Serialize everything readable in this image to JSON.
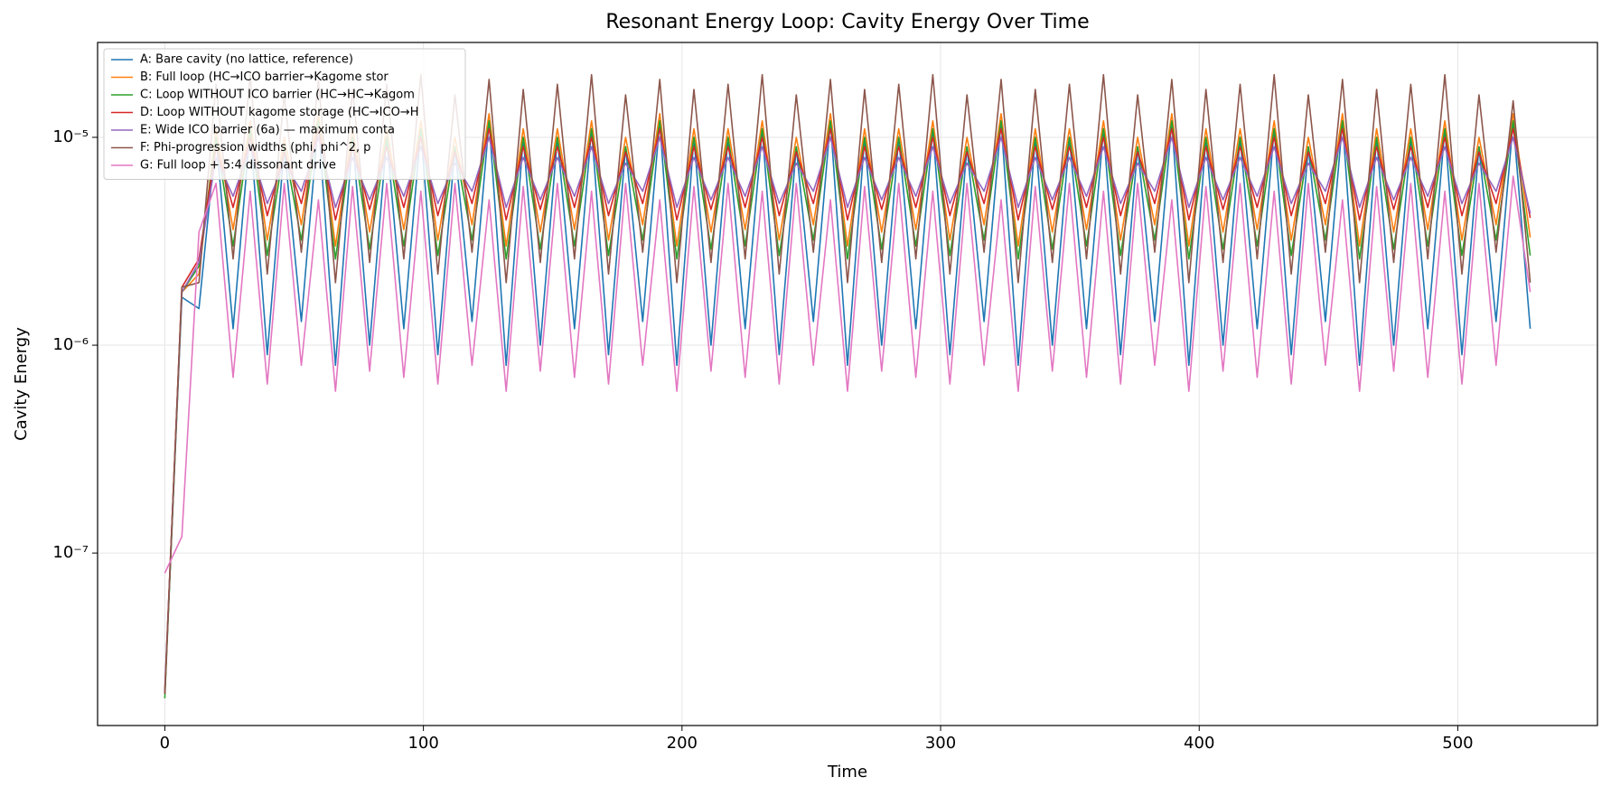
{
  "chart_data": {
    "type": "line",
    "title": "Resonant Energy Loop: Cavity Energy Over Time",
    "x_label": "Time",
    "y_label": "Cavity Energy",
    "yscale": "log",
    "grid": true,
    "legend": "upper left",
    "xlim": [
      -26,
      554
    ],
    "xticks": [
      0,
      100,
      200,
      300,
      400,
      500
    ],
    "ylim": [
      1.48e-08,
      2.86e-05
    ],
    "yticks": [
      {
        "value": 1e-07,
        "label": "10⁻⁷"
      },
      {
        "value": 1e-06,
        "label": "10⁻⁶"
      },
      {
        "value": 1e-05,
        "label": "10⁻⁵"
      }
    ],
    "x": [
      0,
      6.6,
      13.2,
      19.8,
      26.4,
      33,
      39.6,
      46.2,
      52.8,
      59.4,
      66,
      72.6,
      79.2,
      85.8,
      92.4,
      99,
      105.6,
      112.2,
      118.8,
      125.4,
      132,
      138.6,
      145.2,
      151.8,
      158.4,
      165,
      171.6,
      178.2,
      184.8,
      191.4,
      198,
      204.6,
      211.2,
      217.8,
      224.4,
      231,
      237.6,
      244.2,
      250.8,
      257.4,
      264,
      270.6,
      277.2,
      283.8,
      290.4,
      297,
      303.6,
      310.2,
      316.8,
      323.4,
      330,
      336.6,
      343.2,
      349.8,
      356.4,
      363,
      369.6,
      376.2,
      382.8,
      389.4,
      396,
      402.6,
      409.2,
      415.8,
      422.4,
      429,
      435.6,
      442.2,
      448.8,
      455.4,
      462,
      468.6,
      475.2,
      481.8,
      488.4,
      495,
      501.6,
      508.2,
      514.8,
      521.4,
      528
    ],
    "series": [
      {
        "name": "A: Bare cavity (no lattice, reference)",
        "color": "#1f77b4",
        "values": [
          2.1e-08,
          1.7e-06,
          1.5e-06,
          1e-05,
          1.2e-06,
          1.1e-05,
          9e-07,
          9e-06,
          1.3e-06,
          1.2e-05,
          8e-07,
          1e-05,
          1e-06,
          1e-05,
          1.2e-06,
          1.1e-05,
          9e-07,
          9e-06,
          1.3e-06,
          1.2e-05,
          8e-07,
          1e-05,
          1e-06,
          1e-05,
          1.2e-06,
          1.1e-05,
          9e-07,
          9e-06,
          1.3e-06,
          1.2e-05,
          8e-07,
          1e-05,
          1e-06,
          1e-05,
          1.2e-06,
          1.1e-05,
          9e-07,
          9e-06,
          1.3e-06,
          1.2e-05,
          8e-07,
          1e-05,
          1e-06,
          1e-05,
          1.2e-06,
          1.1e-05,
          9e-07,
          9e-06,
          1.3e-06,
          1.2e-05,
          8e-07,
          1e-05,
          1e-06,
          1e-05,
          1.2e-06,
          1.1e-05,
          9e-07,
          9e-06,
          1.3e-06,
          1.2e-05,
          8e-07,
          1e-05,
          1e-06,
          1e-05,
          1.2e-06,
          1.1e-05,
          9e-07,
          9e-06,
          1.3e-06,
          1.2e-05,
          8e-07,
          1e-05,
          1e-06,
          1e-05,
          1.2e-06,
          1.1e-05,
          9e-07,
          9e-06,
          1.3e-06,
          1.2e-05,
          1.2e-06
        ]
      },
      {
        "name": "B: Full loop (HC→ICO barrier→Kagome stor",
        "color": "#ff7f0e",
        "values": [
          2.2e-08,
          1.8e-06,
          2.2e-06,
          1.1e-05,
          3.6e-06,
          1.2e-05,
          3.2e-06,
          1e-05,
          3.8e-06,
          1.3e-05,
          3e-06,
          1.1e-05,
          3.5e-06,
          1.1e-05,
          3.6e-06,
          1.2e-05,
          3.2e-06,
          1e-05,
          3.8e-06,
          1.3e-05,
          3e-06,
          1.1e-05,
          3.5e-06,
          1.1e-05,
          3.6e-06,
          1.2e-05,
          3.2e-06,
          1e-05,
          3.8e-06,
          1.3e-05,
          3e-06,
          1.1e-05,
          3.5e-06,
          1.1e-05,
          3.6e-06,
          1.2e-05,
          3.2e-06,
          1e-05,
          3.8e-06,
          1.3e-05,
          3e-06,
          1.1e-05,
          3.5e-06,
          1.1e-05,
          3.6e-06,
          1.2e-05,
          3.2e-06,
          1e-05,
          3.8e-06,
          1.3e-05,
          3e-06,
          1.1e-05,
          3.5e-06,
          1.1e-05,
          3.6e-06,
          1.2e-05,
          3.2e-06,
          1e-05,
          3.8e-06,
          1.3e-05,
          3e-06,
          1.1e-05,
          3.5e-06,
          1.1e-05,
          3.6e-06,
          1.2e-05,
          3.2e-06,
          1e-05,
          3.8e-06,
          1.3e-05,
          3e-06,
          1.1e-05,
          3.5e-06,
          1.1e-05,
          3.6e-06,
          1.2e-05,
          3.2e-06,
          1e-05,
          3.8e-06,
          1.3e-05,
          3.3e-06
        ]
      },
      {
        "name": "C: Loop WITHOUT ICO barrier (HC→HC→Kagom",
        "color": "#2ca02c",
        "values": [
          2e-08,
          1.8e-06,
          2.4e-06,
          1e-05,
          3e-06,
          1.1e-05,
          2.7e-06,
          9e-06,
          3.2e-06,
          1.2e-05,
          2.6e-06,
          1e-05,
          2.9e-06,
          1e-05,
          3e-06,
          1.1e-05,
          2.7e-06,
          9e-06,
          3.2e-06,
          1.2e-05,
          2.6e-06,
          1e-05,
          2.9e-06,
          1e-05,
          3e-06,
          1.1e-05,
          2.7e-06,
          9e-06,
          3.2e-06,
          1.2e-05,
          2.6e-06,
          1e-05,
          2.9e-06,
          1e-05,
          3e-06,
          1.1e-05,
          2.7e-06,
          9e-06,
          3.2e-06,
          1.2e-05,
          2.6e-06,
          1e-05,
          2.9e-06,
          1e-05,
          3e-06,
          1.1e-05,
          2.7e-06,
          9e-06,
          3.2e-06,
          1.2e-05,
          2.6e-06,
          1e-05,
          2.9e-06,
          1e-05,
          3e-06,
          1.1e-05,
          2.7e-06,
          9e-06,
          3.2e-06,
          1.2e-05,
          2.6e-06,
          1e-05,
          2.9e-06,
          1e-05,
          3e-06,
          1.1e-05,
          2.7e-06,
          9e-06,
          3.2e-06,
          1.2e-05,
          2.6e-06,
          1e-05,
          2.9e-06,
          1e-05,
          3e-06,
          1.1e-05,
          2.7e-06,
          9e-06,
          3.2e-06,
          1.2e-05,
          2.7e-06
        ]
      },
      {
        "name": "D: Loop WITHOUT kagome storage (HC→ICO→H",
        "color": "#d62728",
        "values": [
          2.1e-08,
          1.9e-06,
          2.6e-06,
          9e-06,
          4.6e-06,
          1e-05,
          4.2e-06,
          8.5e-06,
          4.8e-06,
          1.1e-05,
          4e-06,
          9e-06,
          4.5e-06,
          9e-06,
          4.6e-06,
          1e-05,
          4.2e-06,
          8.5e-06,
          4.8e-06,
          1.1e-05,
          4e-06,
          9e-06,
          4.5e-06,
          9e-06,
          4.6e-06,
          1e-05,
          4.2e-06,
          8.5e-06,
          4.8e-06,
          1.1e-05,
          4e-06,
          9e-06,
          4.5e-06,
          9e-06,
          4.6e-06,
          1e-05,
          4.2e-06,
          8.5e-06,
          4.8e-06,
          1.1e-05,
          4e-06,
          9e-06,
          4.5e-06,
          9e-06,
          4.6e-06,
          1e-05,
          4.2e-06,
          8.5e-06,
          4.8e-06,
          1.1e-05,
          4e-06,
          9e-06,
          4.5e-06,
          9e-06,
          4.6e-06,
          1e-05,
          4.2e-06,
          8.5e-06,
          4.8e-06,
          1.1e-05,
          4e-06,
          9e-06,
          4.5e-06,
          9e-06,
          4.6e-06,
          1e-05,
          4.2e-06,
          8.5e-06,
          4.8e-06,
          1.1e-05,
          4e-06,
          9e-06,
          4.5e-06,
          9e-06,
          4.6e-06,
          1e-05,
          4.2e-06,
          8.5e-06,
          4.8e-06,
          1.1e-05,
          4.1e-06
        ]
      },
      {
        "name": "E: Wide ICO barrier (6a) — maximum conta",
        "color": "#9467bd",
        "values": [
          2.2e-08,
          1.8e-06,
          2.5e-06,
          8e-06,
          5.2e-06,
          9e-06,
          4.8e-06,
          7.5e-06,
          5.5e-06,
          1e-05,
          4.6e-06,
          8e-06,
          5e-06,
          8e-06,
          5.2e-06,
          9e-06,
          4.8e-06,
          7.5e-06,
          5.5e-06,
          1e-05,
          4.6e-06,
          8e-06,
          5e-06,
          8e-06,
          5.2e-06,
          9e-06,
          4.8e-06,
          7.5e-06,
          5.5e-06,
          1e-05,
          4.6e-06,
          8e-06,
          5e-06,
          8e-06,
          5.2e-06,
          9e-06,
          4.8e-06,
          7.5e-06,
          5.5e-06,
          1e-05,
          4.6e-06,
          8e-06,
          5e-06,
          8e-06,
          5.2e-06,
          9e-06,
          4.8e-06,
          7.5e-06,
          5.5e-06,
          1e-05,
          4.6e-06,
          8e-06,
          5e-06,
          8e-06,
          5.2e-06,
          9e-06,
          4.8e-06,
          7.5e-06,
          5.5e-06,
          1e-05,
          4.6e-06,
          8e-06,
          5e-06,
          8e-06,
          5.2e-06,
          9e-06,
          4.8e-06,
          7.5e-06,
          5.5e-06,
          1e-05,
          4.6e-06,
          8e-06,
          5e-06,
          8e-06,
          5.2e-06,
          9e-06,
          4.8e-06,
          7.5e-06,
          5.5e-06,
          1e-05,
          4.3e-06
        ]
      },
      {
        "name": "F: Phi-progression widths (phi, phi^2, p",
        "color": "#8c564b",
        "values": [
          2.1e-08,
          1.9e-06,
          2e-06,
          1.8e-05,
          2.6e-06,
          2e-05,
          2.2e-06,
          1.6e-05,
          2.8e-06,
          1.9e-05,
          2e-06,
          1.7e-05,
          2.5e-06,
          1.8e-05,
          2.6e-06,
          2e-05,
          2.2e-06,
          1.6e-05,
          2.8e-06,
          1.9e-05,
          2e-06,
          1.7e-05,
          2.5e-06,
          1.8e-05,
          2.6e-06,
          2e-05,
          2.2e-06,
          1.6e-05,
          2.8e-06,
          1.9e-05,
          2e-06,
          1.7e-05,
          2.5e-06,
          1.8e-05,
          2.6e-06,
          2e-05,
          2.2e-06,
          1.6e-05,
          2.8e-06,
          1.9e-05,
          2e-06,
          1.7e-05,
          2.5e-06,
          1.8e-05,
          2.6e-06,
          2e-05,
          2.2e-06,
          1.6e-05,
          2.8e-06,
          1.9e-05,
          2e-06,
          1.7e-05,
          2.5e-06,
          1.8e-05,
          2.6e-06,
          2e-05,
          2.2e-06,
          1.6e-05,
          2.8e-06,
          1.9e-05,
          2e-06,
          1.7e-05,
          2.5e-06,
          1.8e-05,
          2.6e-06,
          2e-05,
          2.2e-06,
          1.6e-05,
          2.8e-06,
          1.9e-05,
          2e-06,
          1.7e-05,
          2.5e-06,
          1.8e-05,
          2.6e-06,
          2e-05,
          2.2e-06,
          1.6e-05,
          2.8e-06,
          1.5e-05,
          2e-06
        ]
      },
      {
        "name": "G: Full loop + 5:4 dissonant drive",
        "color": "#e377c2",
        "values": [
          8e-08,
          1.2e-07,
          3.5e-06,
          6e-06,
          7e-07,
          5.5e-06,
          6.5e-07,
          6e-06,
          8e-07,
          5e-06,
          6e-07,
          5.8e-06,
          7.5e-07,
          6e-06,
          7e-07,
          5.5e-06,
          6.5e-07,
          6e-06,
          8e-07,
          5e-06,
          6e-07,
          5.8e-06,
          7.5e-07,
          6e-06,
          7e-07,
          5.5e-06,
          6.5e-07,
          6e-06,
          8e-07,
          5e-06,
          6e-07,
          5.8e-06,
          7.5e-07,
          6e-06,
          7e-07,
          5.5e-06,
          6.5e-07,
          6e-06,
          8e-07,
          5e-06,
          6e-07,
          5.8e-06,
          7.5e-07,
          6e-06,
          7e-07,
          5.5e-06,
          6.5e-07,
          6e-06,
          8e-07,
          5e-06,
          6e-07,
          5.8e-06,
          7.5e-07,
          6e-06,
          7e-07,
          5.5e-06,
          6.5e-07,
          6e-06,
          8e-07,
          5e-06,
          6e-07,
          5.8e-06,
          7.5e-07,
          6e-06,
          7e-07,
          5.5e-06,
          6.5e-07,
          6e-06,
          8e-07,
          5e-06,
          6e-07,
          5.8e-06,
          7.5e-07,
          6e-06,
          7e-07,
          5.5e-06,
          6.5e-07,
          6e-06,
          8e-07,
          6.5e-06,
          1.8e-06
        ]
      }
    ]
  }
}
